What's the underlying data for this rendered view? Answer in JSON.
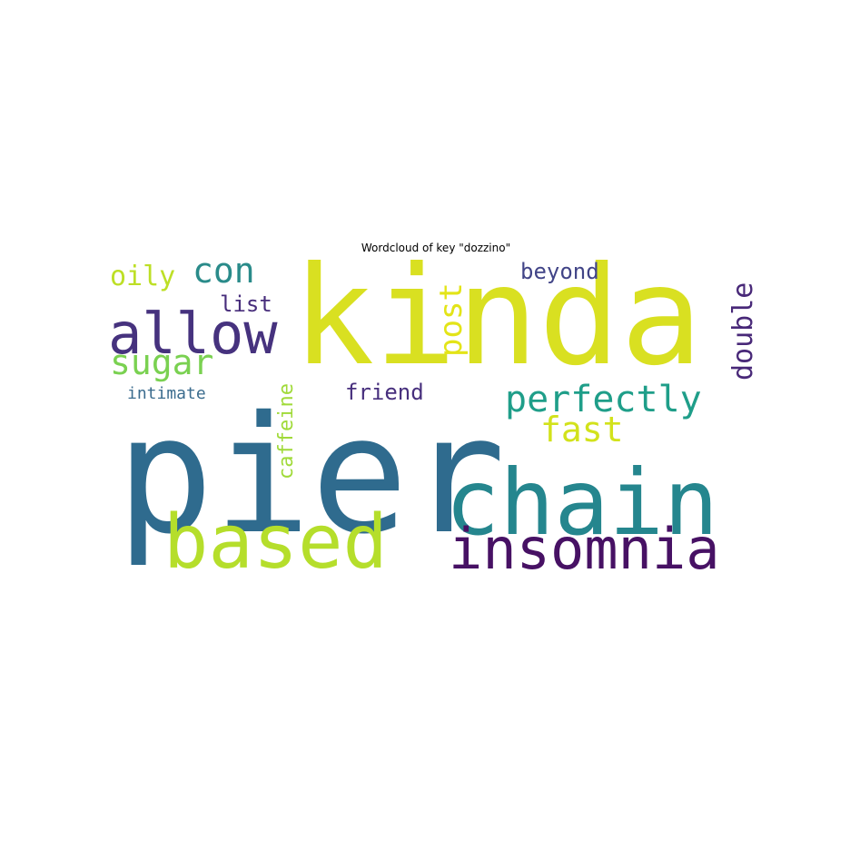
{
  "chart_data": {
    "type": "wordcloud",
    "title": "Wordcloud of key \"dozzino\"",
    "words": [
      {
        "text": "pier",
        "color": "#2f6b8e"
      },
      {
        "text": "kinda",
        "color": "#d9e021"
      },
      {
        "text": "chain",
        "color": "#25868e"
      },
      {
        "text": "based",
        "color": "#b5de2b"
      },
      {
        "text": "insomnia",
        "color": "#471164"
      },
      {
        "text": "allow",
        "color": "#46327e"
      },
      {
        "text": "perfectly",
        "color": "#1f9e89"
      },
      {
        "text": "sugar",
        "color": "#7ad151"
      },
      {
        "text": "con",
        "color": "#2a8b8a"
      },
      {
        "text": "oily",
        "color": "#bddf26"
      },
      {
        "text": "fast",
        "color": "#d2e21b"
      },
      {
        "text": "post",
        "color": "#e3e418"
      },
      {
        "text": "double",
        "color": "#482878"
      },
      {
        "text": "beyond",
        "color": "#414487"
      },
      {
        "text": "list",
        "color": "#472d7b"
      },
      {
        "text": "friend",
        "color": "#472f7d"
      },
      {
        "text": "caffeine",
        "color": "#a0da39"
      },
      {
        "text": "intimate",
        "color": "#3b6c8e"
      }
    ]
  }
}
